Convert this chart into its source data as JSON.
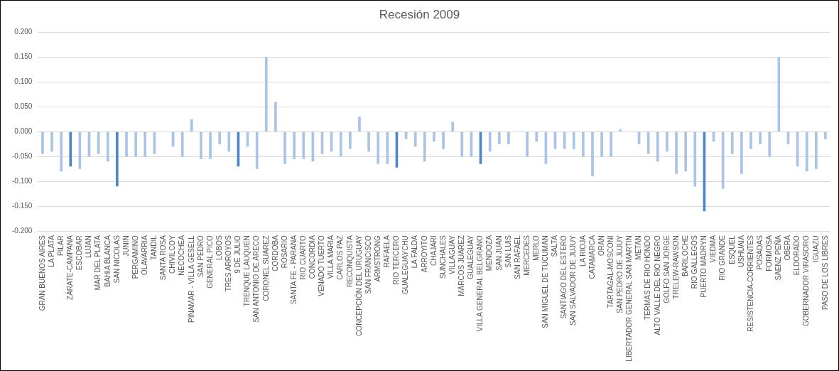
{
  "chart_data": {
    "type": "bar",
    "title": "Recesión 2009",
    "categories": [
      "GRAN BUENOS AIRES",
      "LA PLATA",
      "PILAR",
      "ZÁRATE-CAMPANA",
      "ESCOBAR",
      "LUJAN",
      "MAR DEL PLATA",
      "BAHIA BLANCA",
      "SAN NICOLAS",
      "JUNIN",
      "PERGAMINO",
      "OLAVARRIA",
      "TANDIL",
      "SANTA ROSA",
      "CHIVILCOY",
      "NECOCHEA",
      "PINAMAR - VILLA GESELL",
      "SAN PEDRO",
      "GENERAL PICO",
      "LOBOS",
      "TRES ARROYOS",
      "9 DE JULIO",
      "TRENQUE LAUQUEN",
      "SAN ANTONIO DE ARECO",
      "CORONEL SUAREZ",
      "CORDOBA",
      "ROSARIO",
      "SANTA FE - PARANA",
      "RIO CUARTO",
      "CONCORDIA",
      "VENADO TUERTO",
      "VILLA MARIA",
      "CARLOS PAZ",
      "RECONQUISTA",
      "CONCEPCIÓN DEL URUGUAY",
      "SAN FRANCISCO",
      "ARMSTRONG",
      "RAFAELA",
      "RIO TERCERO",
      "GUALEGUAYCHU",
      "LA FALDA",
      "ARROYITO",
      "CHAJARI",
      "SUNCHALES",
      "VILLAGUAY",
      "MARCOS JUAREZ",
      "GUALEGUAY",
      "VILLA GENERAL BELGRANO",
      "MENDOZA",
      "SAN JUAN",
      "SAN LUIS",
      "SAN RAFAEL",
      "MERCEDES",
      "MERLO",
      "SAN MIGUEL DE TUCUMAN",
      "SALTA",
      "SANTIAGO DEL ESTERO",
      "SAN SALVADOR DE JUJUY",
      "LA RIOJA",
      "CATAMARCA",
      "ORAN",
      "TARTAGAL-MOSCONI",
      "SAN PEDRO DE JUJUY",
      "LIBERTADOR GENERAL SAN MARTIN",
      "METAN",
      "TERMAS DE RIO HONDO",
      "ALTO VALLE DEL RIO NEGRO",
      "GOLFO SAN JORGE",
      "TRELEW-RAWSON",
      "BARILOCHE",
      "RIO GALLEGOS",
      "PUERTO MADRYN",
      "VIEDMA",
      "RIO GRANDE",
      "ESQUEL",
      "USHUAIA",
      "RESISTENCIA-CORRIENTES",
      "POSADAS",
      "FORMOSA",
      "SAENZ PEÑA",
      "OBERÁ",
      "ELDORADO",
      "GOBERNADOR VIRASORO",
      "IGUAZU",
      "PASO DE LOS LIBRES"
    ],
    "values": [
      -0.045,
      -0.04,
      -0.08,
      -0.07,
      -0.075,
      -0.05,
      -0.045,
      -0.06,
      -0.11,
      -0.05,
      -0.05,
      -0.05,
      -0.045,
      null,
      -0.03,
      -0.05,
      0.025,
      -0.055,
      -0.055,
      -0.025,
      -0.04,
      -0.07,
      -0.03,
      -0.075,
      0.15,
      0.06,
      -0.065,
      -0.055,
      -0.055,
      -0.06,
      -0.045,
      -0.04,
      -0.05,
      -0.035,
      0.03,
      -0.04,
      -0.065,
      -0.065,
      -0.072,
      -0.015,
      -0.03,
      -0.06,
      -0.02,
      -0.035,
      0.02,
      -0.05,
      -0.05,
      -0.065,
      -0.04,
      -0.025,
      -0.025,
      null,
      -0.05,
      -0.02,
      -0.065,
      -0.035,
      -0.035,
      -0.035,
      -0.05,
      -0.09,
      -0.05,
      -0.05,
      0.005,
      null,
      -0.025,
      -0.045,
      -0.06,
      -0.04,
      -0.085,
      -0.08,
      -0.11,
      -0.16,
      -0.02,
      -0.115,
      -0.045,
      -0.085,
      -0.035,
      -0.025,
      -0.05,
      0.15,
      -0.025,
      -0.07,
      -0.08,
      -0.075,
      -0.015
    ],
    "colors": [
      "#a9c4e4",
      "#a9c4e4",
      "#a9c4e4",
      "#4f87c6",
      "#a9c4e4",
      "#a9c4e4",
      "#a9c4e4",
      "#a9c4e4",
      "#4f87c6",
      "#a9c4e4",
      "#a9c4e4",
      "#a9c4e4",
      "#a9c4e4",
      "#a9c4e4",
      "#a9c4e4",
      "#a9c4e4",
      "#a9c4e4",
      "#a9c4e4",
      "#a9c4e4",
      "#a9c4e4",
      "#a9c4e4",
      "#4f87c6",
      "#a9c4e4",
      "#a9c4e4",
      "#a9c4e4",
      "#a9c4e4",
      "#a9c4e4",
      "#a9c4e4",
      "#a9c4e4",
      "#a9c4e4",
      "#a9c4e4",
      "#a9c4e4",
      "#a9c4e4",
      "#a9c4e4",
      "#a9c4e4",
      "#a9c4e4",
      "#a9c4e4",
      "#a9c4e4",
      "#4f87c6",
      "#a9c4e4",
      "#a9c4e4",
      "#a9c4e4",
      "#a9c4e4",
      "#a9c4e4",
      "#a9c4e4",
      "#a9c4e4",
      "#a9c4e4",
      "#4f87c6",
      "#a9c4e4",
      "#a9c4e4",
      "#a9c4e4",
      "#a9c4e4",
      "#a9c4e4",
      "#a9c4e4",
      "#a9c4e4",
      "#a9c4e4",
      "#a9c4e4",
      "#a9c4e4",
      "#a9c4e4",
      "#a9c4e4",
      "#a9c4e4",
      "#a9c4e4",
      "#a9c4e4",
      "#a9c4e4",
      "#a9c4e4",
      "#a9c4e4",
      "#a9c4e4",
      "#a9c4e4",
      "#a9c4e4",
      "#a9c4e4",
      "#a9c4e4",
      "#4f87c6",
      "#a9c4e4",
      "#a9c4e4",
      "#a9c4e4",
      "#a9c4e4",
      "#a9c4e4",
      "#a9c4e4",
      "#a9c4e4",
      "#a9c4e4",
      "#a9c4e4",
      "#a9c4e4",
      "#a9c4e4",
      "#a9c4e4",
      "#a9c4e4"
    ],
    "ylim": [
      -0.2,
      0.2
    ],
    "yticks": [
      {
        "value": -0.2,
        "label": "-0.200"
      },
      {
        "value": -0.15,
        "label": "-0.150"
      },
      {
        "value": -0.1,
        "label": "-0.100"
      },
      {
        "value": -0.05,
        "label": "-0.050"
      },
      {
        "value": 0,
        "label": "0.000"
      },
      {
        "value": 0.05,
        "label": "0.050"
      },
      {
        "value": 0.1,
        "label": "0.100"
      },
      {
        "value": 0.15,
        "label": "0.150"
      },
      {
        "value": 0.2,
        "label": "0.200"
      }
    ],
    "grid": "y"
  }
}
